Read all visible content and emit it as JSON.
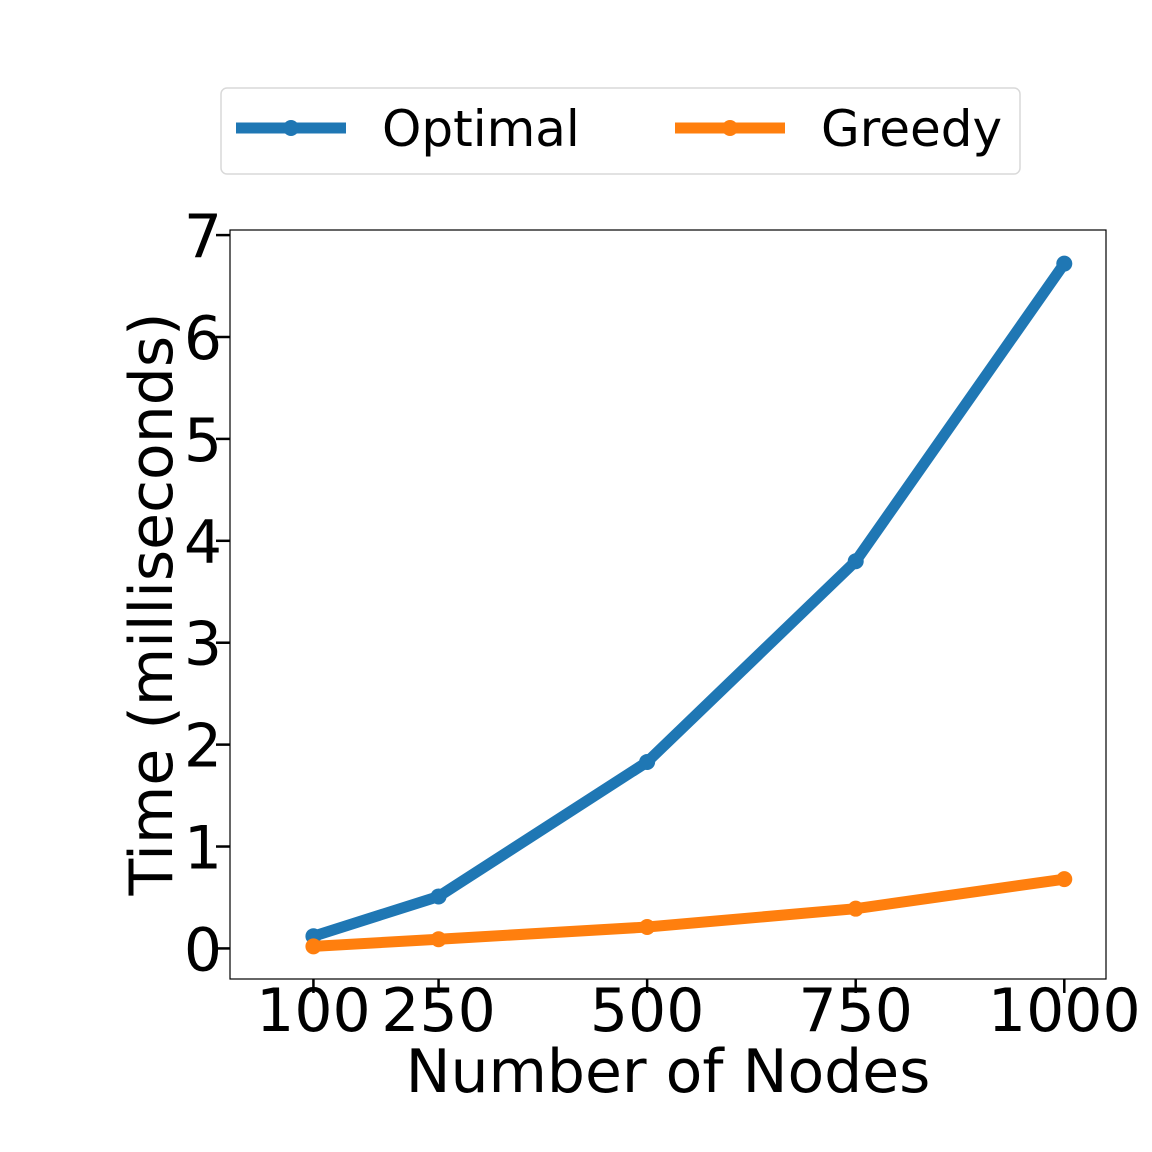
{
  "chart_data": {
    "type": "line",
    "xlabel": "Number of Nodes",
    "ylabel": "Time (milliseconds)",
    "x": [
      100,
      250,
      500,
      750,
      1000
    ],
    "x_tick_labels": [
      "100",
      "250",
      "500",
      "750",
      "1000"
    ],
    "y_ticks": [
      0,
      1,
      2,
      3,
      4,
      5,
      6,
      7
    ],
    "y_tick_labels": [
      "0",
      "1",
      "2",
      "3",
      "4",
      "5",
      "6",
      "7"
    ],
    "xlim": [
      0,
      1050
    ],
    "ylim": [
      -0.3,
      7.05
    ],
    "grid": false,
    "legend_position": "top-center",
    "series": [
      {
        "name": "Optimal",
        "color": "#1f77b4",
        "values": [
          0.12,
          0.51,
          1.83,
          3.8,
          6.72
        ]
      },
      {
        "name": "Greedy",
        "color": "#ff7f0e",
        "values": [
          0.02,
          0.09,
          0.21,
          0.39,
          0.68
        ]
      }
    ]
  }
}
